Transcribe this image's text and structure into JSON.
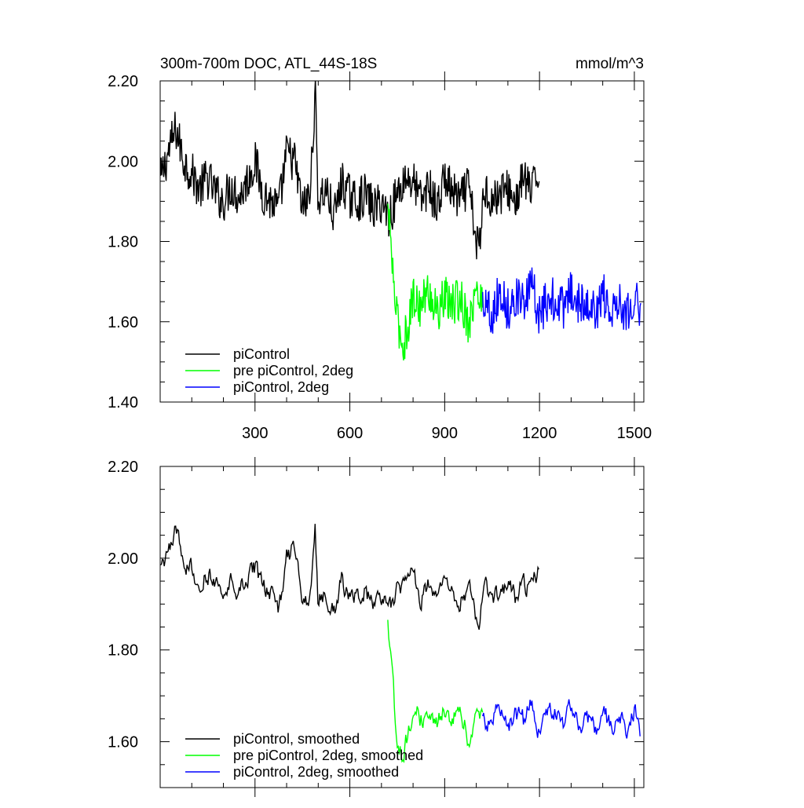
{
  "chart_data": [
    {
      "type": "line",
      "title": "300m-700m DOC, ATL_44S-18S",
      "units": "mmol/m^3",
      "xlim": [
        0,
        1530
      ],
      "ylim": [
        1.4,
        2.2
      ],
      "xticks": [
        300,
        600,
        900,
        1200,
        1500
      ],
      "xtick_labels": [
        "300",
        "600",
        "900",
        "1200",
        "1500"
      ],
      "yticks": [
        1.4,
        1.6,
        1.8,
        2.0,
        2.2
      ],
      "ytick_labels": [
        "1.40",
        "1.60",
        "1.80",
        "2.00",
        "2.20"
      ],
      "grid": false,
      "legend": "bottom-left",
      "series": [
        {
          "name": "piControl",
          "color": "#000000",
          "x_range": [
            1,
            1200
          ],
          "x": [
            1,
            25,
            50,
            75,
            100,
            125,
            150,
            175,
            200,
            225,
            250,
            275,
            300,
            325,
            350,
            375,
            400,
            425,
            450,
            475,
            490,
            500,
            525,
            550,
            575,
            600,
            625,
            650,
            675,
            700,
            725,
            750,
            775,
            800,
            825,
            850,
            875,
            900,
            925,
            950,
            975,
            1000,
            1010,
            1025,
            1050,
            1075,
            1100,
            1125,
            1150,
            1175,
            1200
          ],
          "values": [
            1.95,
            2.02,
            2.08,
            2.0,
            1.97,
            1.93,
            1.96,
            1.92,
            1.9,
            1.94,
            1.91,
            1.95,
            2.0,
            1.92,
            1.9,
            1.88,
            2.02,
            2.0,
            1.88,
            1.92,
            2.18,
            1.9,
            1.93,
            1.86,
            1.95,
            1.91,
            1.9,
            1.92,
            1.88,
            1.9,
            1.86,
            1.92,
            1.96,
            1.95,
            1.9,
            1.94,
            1.88,
            1.96,
            1.92,
            1.9,
            1.94,
            1.8,
            1.78,
            1.94,
            1.9,
            1.92,
            1.93,
            1.9,
            1.96,
            1.92,
            1.98
          ]
        },
        {
          "name": "pre piControl, 2deg",
          "color": "#00ff00",
          "x_range": [
            720,
            1020
          ],
          "x": [
            720,
            730,
            740,
            750,
            760,
            770,
            780,
            790,
            800,
            825,
            850,
            875,
            900,
            925,
            950,
            975,
            1000,
            1020
          ],
          "values": [
            1.88,
            1.8,
            1.68,
            1.6,
            1.57,
            1.54,
            1.58,
            1.62,
            1.66,
            1.64,
            1.68,
            1.62,
            1.66,
            1.64,
            1.66,
            1.6,
            1.67,
            1.65
          ]
        },
        {
          "name": "piControl, 2deg",
          "color": "#0000ff",
          "x_range": [
            1020,
            1520
          ],
          "x": [
            1020,
            1050,
            1075,
            1100,
            1125,
            1150,
            1175,
            1200,
            1225,
            1250,
            1275,
            1300,
            1325,
            1350,
            1375,
            1400,
            1425,
            1450,
            1475,
            1500,
            1520
          ],
          "values": [
            1.66,
            1.62,
            1.68,
            1.63,
            1.67,
            1.64,
            1.69,
            1.62,
            1.65,
            1.66,
            1.63,
            1.68,
            1.64,
            1.66,
            1.62,
            1.67,
            1.63,
            1.66,
            1.62,
            1.67,
            1.63
          ]
        }
      ]
    },
    {
      "type": "line",
      "xlim": [
        0,
        1530
      ],
      "ylim": [
        1.5,
        2.2
      ],
      "xticks": [
        300,
        600,
        900,
        1200,
        1500
      ],
      "yticks": [
        1.6,
        1.8,
        2.0,
        2.2
      ],
      "ytick_labels": [
        "1.60",
        "1.80",
        "2.00",
        "2.20"
      ],
      "grid": false,
      "legend": "bottom-left",
      "series": [
        {
          "name": "piControl, smoothed",
          "color": "#000000",
          "x_range": [
            1,
            1200
          ],
          "x": [
            1,
            25,
            50,
            75,
            100,
            125,
            150,
            175,
            200,
            225,
            250,
            275,
            300,
            325,
            350,
            375,
            400,
            425,
            450,
            475,
            490,
            500,
            525,
            550,
            575,
            600,
            625,
            650,
            675,
            700,
            725,
            750,
            775,
            800,
            825,
            850,
            875,
            900,
            925,
            950,
            975,
            1000,
            1010,
            1025,
            1050,
            1075,
            1100,
            1125,
            1150,
            1175,
            1200
          ],
          "values": [
            1.98,
            2.0,
            2.06,
            2.0,
            1.98,
            1.95,
            1.97,
            1.94,
            1.92,
            1.95,
            1.93,
            1.96,
            1.98,
            1.93,
            1.92,
            1.87,
            2.0,
            2.02,
            1.9,
            1.92,
            2.09,
            1.9,
            1.93,
            1.88,
            1.95,
            1.92,
            1.91,
            1.93,
            1.89,
            1.91,
            1.88,
            1.93,
            1.95,
            1.96,
            1.91,
            1.94,
            1.9,
            1.96,
            1.93,
            1.91,
            1.94,
            1.85,
            1.84,
            1.94,
            1.91,
            1.92,
            1.93,
            1.91,
            1.95,
            1.93,
            1.97
          ]
        },
        {
          "name": "pre piControl, 2deg, smoothed",
          "color": "#00ff00",
          "x_range": [
            720,
            1020
          ],
          "x": [
            720,
            730,
            740,
            750,
            760,
            770,
            780,
            790,
            800,
            825,
            850,
            875,
            900,
            925,
            950,
            975,
            1000,
            1020
          ],
          "values": [
            1.86,
            1.78,
            1.68,
            1.6,
            1.58,
            1.56,
            1.6,
            1.64,
            1.67,
            1.65,
            1.68,
            1.63,
            1.67,
            1.65,
            1.67,
            1.61,
            1.67,
            1.65
          ]
        },
        {
          "name": "piControl, 2deg, smoothed",
          "color": "#0000ff",
          "x_range": [
            1020,
            1520
          ],
          "x": [
            1020,
            1050,
            1075,
            1100,
            1125,
            1150,
            1175,
            1200,
            1225,
            1250,
            1275,
            1300,
            1325,
            1350,
            1375,
            1400,
            1425,
            1450,
            1475,
            1500,
            1520
          ],
          "values": [
            1.65,
            1.63,
            1.68,
            1.62,
            1.67,
            1.64,
            1.7,
            1.62,
            1.66,
            1.66,
            1.64,
            1.69,
            1.64,
            1.66,
            1.62,
            1.67,
            1.63,
            1.66,
            1.63,
            1.68,
            1.62
          ]
        }
      ]
    }
  ]
}
